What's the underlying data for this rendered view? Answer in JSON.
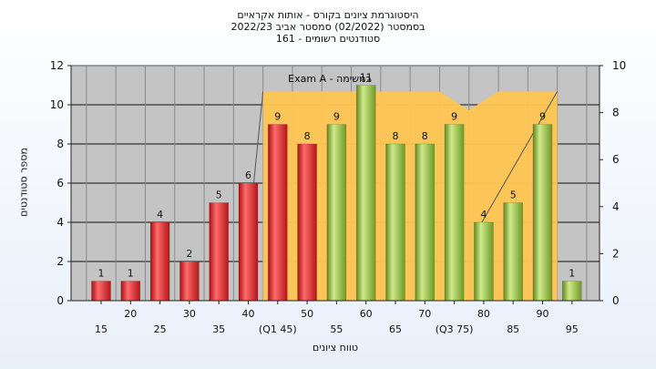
{
  "title": {
    "line1": "היסטוגרמת ציונים בקורס - אותות אקראיים",
    "line2": "בסמסטר  (02/2022)  סמסטר אביב 2022/23",
    "line3": "סטודנטים רשומים - 161"
  },
  "chart_data": {
    "type": "bar",
    "ylabel": "מספר סטודנטים",
    "xlabel": "טווח ציונים",
    "ylim": [
      0,
      12
    ],
    "y2lim": [
      0,
      10
    ],
    "yticks": [
      0,
      2,
      4,
      6,
      8,
      10,
      12
    ],
    "y2ticks": [
      0,
      2,
      4,
      6,
      8,
      10
    ],
    "grid": true,
    "categories": [
      "15",
      "20",
      "25",
      "30",
      "35",
      "40",
      "(Q1 45)",
      "50",
      "55",
      "60",
      "65",
      "70",
      "(Q3 75)",
      "80",
      "85",
      "90",
      "95"
    ],
    "x_label_rows": [
      "low",
      "high",
      "low",
      "high",
      "low",
      "high",
      "low",
      "high",
      "low",
      "high",
      "low",
      "high",
      "low",
      "high",
      "low",
      "high",
      "low"
    ],
    "values": [
      1,
      1,
      4,
      2,
      5,
      6,
      9,
      8,
      9,
      11,
      8,
      8,
      9,
      4,
      5,
      9,
      1
    ],
    "bar_colors": [
      "red",
      "red",
      "red",
      "red",
      "red",
      "red",
      "red",
      "red",
      "green",
      "green",
      "green",
      "green",
      "green",
      "green",
      "green",
      "green",
      "green"
    ],
    "overlay": {
      "name": "Exam A - במשימה",
      "color": "#ffc552",
      "values": [
        8.9,
        8.9,
        8.9,
        8.9,
        8.9,
        8.9,
        8.9,
        8.1,
        8.9,
        8.9
      ]
    },
    "colors": {
      "red": "#e0262a",
      "green": "#8dbb3a",
      "plot_bg": "#c4c4c4"
    }
  }
}
